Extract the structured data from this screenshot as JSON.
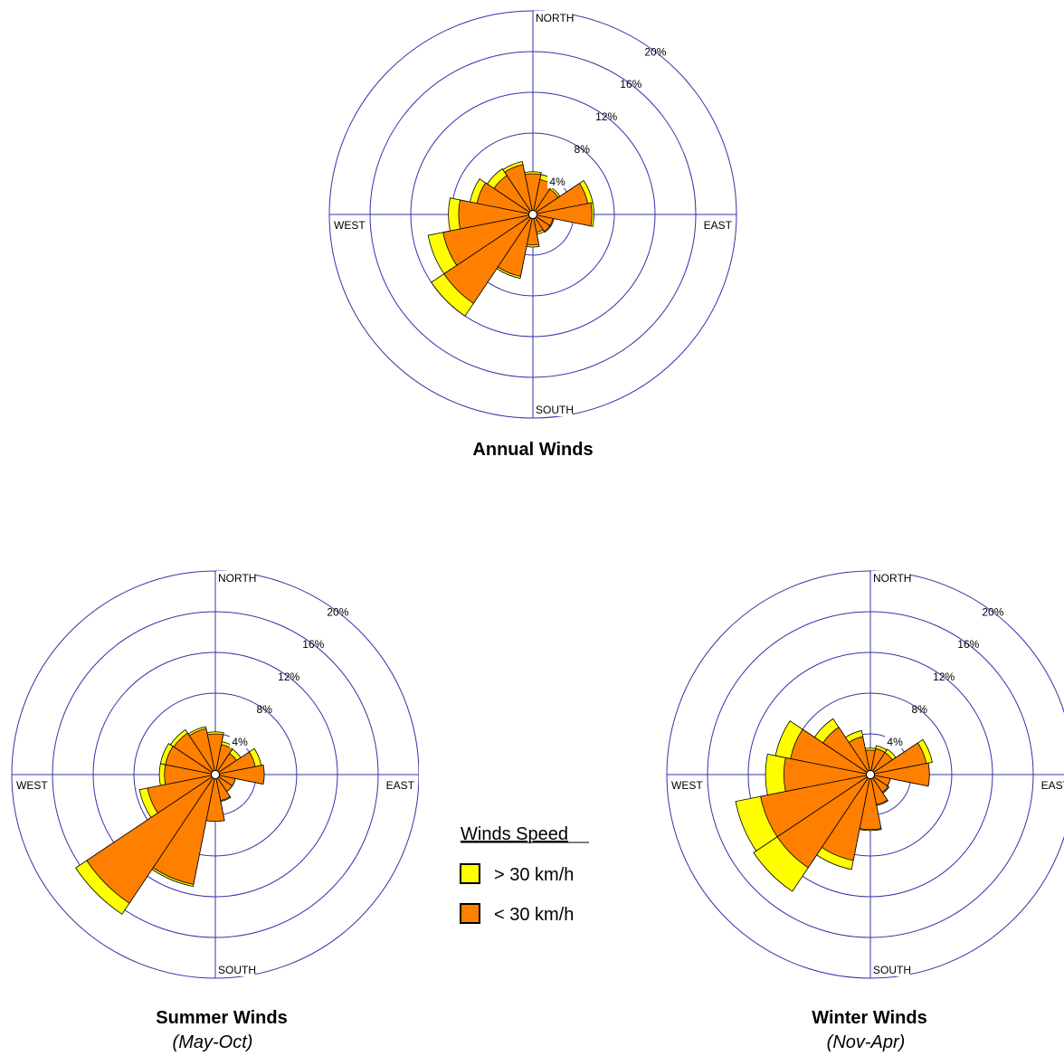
{
  "colors": {
    "high": "#ffff00",
    "low": "#ff8000",
    "grid": "#3333aa",
    "outline": "#000000"
  },
  "legend": {
    "title": "Winds Speed",
    "items": [
      {
        "label": "> 30 km/h",
        "color": "#ffff00"
      },
      {
        "label": "< 30 km/h",
        "color": "#ff8000"
      }
    ]
  },
  "chart_data": [
    {
      "type": "wind-rose",
      "title": "Annual Winds",
      "subtitle": "",
      "directions": [
        "N",
        "NNE",
        "NE",
        "ENE",
        "E",
        "ESE",
        "SE",
        "SSE",
        "S",
        "SSW",
        "SW",
        "WSW",
        "W",
        "WNW",
        "NW",
        "NNW"
      ],
      "axis_labels": {
        "north": "NORTH",
        "east": "EAST",
        "south": "SOUTH",
        "west": "WEST"
      },
      "rings": [
        "4%",
        "8%",
        "12%",
        "16%",
        "20%"
      ],
      "series": [
        {
          "name": "< 30 km/h",
          "values": [
            4.0,
            3.5,
            3.0,
            5.5,
            5.8,
            2.0,
            2.0,
            1.8,
            3.0,
            6.2,
            10.5,
            9.0,
            7.3,
            5.6,
            4.6,
            5.0
          ]
        },
        {
          "name": "> 30 km/h",
          "values": [
            4.2,
            4.0,
            3.2,
            6.0,
            6.0,
            2.1,
            2.1,
            2.0,
            3.2,
            6.4,
            12.0,
            10.5,
            8.3,
            6.3,
            5.4,
            5.3
          ]
        }
      ]
    },
    {
      "type": "wind-rose",
      "title": "Summer Winds",
      "subtitle": "(May-Oct)",
      "directions": [
        "N",
        "NNE",
        "NE",
        "ENE",
        "E",
        "ESE",
        "SE",
        "SSE",
        "S",
        "SSW",
        "SW",
        "WSW",
        "W",
        "WNW",
        "NW",
        "NNW"
      ],
      "axis_labels": {
        "north": "NORTH",
        "east": "EAST",
        "south": "SOUTH",
        "west": "WEST"
      },
      "rings": [
        "4%",
        "8%",
        "12%",
        "16%",
        "20%"
      ],
      "series": [
        {
          "name": "< 30 km/h",
          "values": [
            4.0,
            3.0,
            2.5,
            4.0,
            4.8,
            2.0,
            2.0,
            2.6,
            4.6,
            11.0,
            15.2,
            6.8,
            5.0,
            5.0,
            4.9,
            4.6
          ]
        },
        {
          "name": "> 30 km/h",
          "values": [
            4.2,
            3.3,
            3.0,
            4.6,
            4.8,
            2.0,
            2.0,
            2.7,
            4.6,
            11.2,
            16.5,
            7.6,
            5.5,
            5.5,
            5.3,
            4.8
          ]
        }
      ]
    },
    {
      "type": "wind-rose",
      "title": "Winter Winds",
      "subtitle": "(Nov-Apr)",
      "directions": [
        "N",
        "NNE",
        "NE",
        "ENE",
        "E",
        "ESE",
        "SE",
        "SSE",
        "S",
        "SSW",
        "SW",
        "WSW",
        "W",
        "WNW",
        "NW",
        "NNW"
      ],
      "axis_labels": {
        "north": "NORTH",
        "east": "EAST",
        "south": "SOUTH",
        "west": "WEST"
      },
      "rings": [
        "4%",
        "8%",
        "12%",
        "16%",
        "20%"
      ],
      "series": [
        {
          "name": "< 30 km/h",
          "values": [
            2.4,
            2.6,
            2.6,
            5.6,
            5.8,
            2.0,
            2.1,
            3.0,
            5.4,
            8.6,
            11.0,
            11.0,
            8.5,
            8.0,
            5.6,
            3.8
          ]
        },
        {
          "name": "> 30 km/h",
          "values": [
            2.6,
            2.9,
            3.0,
            6.2,
            5.8,
            2.0,
            2.2,
            3.1,
            5.5,
            9.5,
            13.8,
            13.5,
            10.3,
            9.5,
            6.6,
            4.4
          ]
        }
      ]
    }
  ]
}
